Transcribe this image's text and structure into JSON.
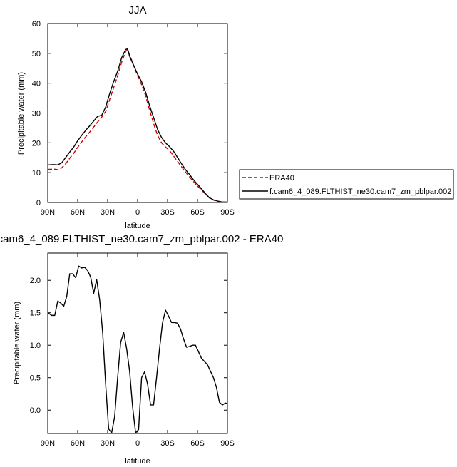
{
  "chart_data": [
    {
      "type": "line",
      "title": "JJA",
      "xlabel": "latitude",
      "ylabel": "Precipitable water (mm)",
      "xlim": [
        90,
        -90
      ],
      "ylim": [
        0,
        60
      ],
      "xticks": [
        90,
        60,
        30,
        0,
        -30,
        -60,
        -90
      ],
      "xticklabels": [
        "90N",
        "60N",
        "30N",
        "0",
        "30S",
        "60S",
        "90S"
      ],
      "yticks": [
        0,
        10,
        20,
        30,
        40,
        50,
        60
      ],
      "yticklabels": [
        "0",
        "10",
        "20",
        "30",
        "40",
        "50",
        "60"
      ],
      "legend_position": "right",
      "series": [
        {
          "name": "ERA40",
          "color": "#cc0000",
          "dash": "dashed",
          "x": [
            90,
            84,
            80,
            76,
            72,
            68,
            64,
            60,
            56,
            52,
            48,
            44,
            40,
            36,
            32,
            28,
            24,
            20,
            16,
            12,
            10,
            8,
            4,
            0,
            -4,
            -8,
            -12,
            -16,
            -20,
            -24,
            -28,
            -32,
            -36,
            -40,
            -44,
            -48,
            -52,
            -56,
            -60,
            -64,
            -68,
            -72,
            -76,
            -80,
            -84,
            -90
          ],
          "y": [
            11.1,
            11.2,
            11.0,
            11.6,
            13.0,
            14.8,
            16.5,
            18.5,
            20.3,
            22.0,
            23.6,
            25.3,
            27.0,
            28.6,
            30.5,
            34.5,
            38.5,
            42.5,
            47.0,
            50.6,
            51.3,
            49.5,
            46.0,
            42.5,
            39.5,
            35.8,
            31.0,
            26.5,
            22.5,
            20.0,
            18.6,
            17.4,
            15.6,
            13.8,
            12.0,
            10.2,
            8.6,
            7.0,
            5.5,
            4.2,
            2.8,
            1.5,
            0.8,
            0.4,
            0.2,
            0.1
          ]
        },
        {
          "name": "f.cam6_4_089.FLTHIST_ne30.cam7_zm_pblpar.002",
          "color": "#000000",
          "dash": "solid",
          "x": [
            90,
            84,
            80,
            76,
            72,
            68,
            64,
            60,
            56,
            52,
            48,
            44,
            40,
            36,
            32,
            28,
            24,
            20,
            16,
            12,
            10,
            8,
            4,
            0,
            -4,
            -8,
            -12,
            -16,
            -20,
            -24,
            -28,
            -32,
            -36,
            -40,
            -44,
            -48,
            -52,
            -56,
            -60,
            -64,
            -68,
            -72,
            -76,
            -80,
            -84,
            -90
          ],
          "y": [
            12.6,
            12.7,
            12.6,
            13.3,
            15.1,
            16.9,
            18.6,
            20.7,
            22.5,
            24.2,
            25.7,
            27.3,
            28.9,
            29.2,
            32.0,
            36.5,
            40.5,
            44.0,
            48.5,
            51.3,
            51.5,
            49.0,
            46.0,
            43.0,
            40.5,
            37.0,
            32.5,
            28.5,
            24.5,
            21.8,
            20.0,
            18.7,
            17.2,
            15.1,
            13.0,
            11.0,
            9.4,
            7.6,
            6.1,
            4.6,
            3.0,
            1.6,
            0.9,
            0.5,
            0.2,
            0.1
          ]
        }
      ]
    },
    {
      "type": "line",
      "title": "cam6_4_089.FLTHIST_ne30.cam7_zm_pblpar.002 - ERA40",
      "xlabel": "latitude",
      "ylabel": "Precipitable water (mm)",
      "xlim": [
        90,
        -90
      ],
      "ylim": [
        -0.36,
        2.42
      ],
      "xticks": [
        90,
        60,
        30,
        0,
        -30,
        -60,
        -90
      ],
      "xticklabels": [
        "90N",
        "60N",
        "30N",
        "0",
        "30S",
        "60S",
        "90S"
      ],
      "yticks": [
        0.0,
        0.5,
        1.0,
        1.5,
        2.0
      ],
      "yticklabels": [
        "0.0",
        "0.5",
        "1.0",
        "1.5",
        "2.0"
      ],
      "series": [
        {
          "color": "#000000",
          "x": [
            90,
            86,
            83,
            80,
            77,
            74,
            71,
            68,
            65,
            62,
            59,
            56,
            53,
            50,
            47,
            44,
            41,
            38,
            35,
            32,
            29,
            26,
            23,
            20,
            17,
            14,
            11,
            8,
            5,
            2,
            -1,
            -4,
            -7,
            -10,
            -13,
            -16,
            -19,
            -22,
            -25,
            -28,
            -31,
            -34,
            -37,
            -40,
            -43,
            -46,
            -49,
            -52,
            -55,
            -58,
            -61,
            -64,
            -67,
            -70,
            -73,
            -76,
            -79,
            -82,
            -85,
            -88,
            -90
          ],
          "y": [
            1.5,
            1.46,
            1.46,
            1.68,
            1.65,
            1.6,
            1.75,
            2.1,
            2.1,
            2.04,
            2.22,
            2.19,
            2.2,
            2.15,
            2.05,
            1.8,
            2.01,
            1.7,
            1.2,
            0.4,
            -0.29,
            -0.35,
            -0.1,
            0.5,
            1.04,
            1.2,
            0.95,
            0.6,
            0.05,
            -0.35,
            -0.3,
            0.5,
            0.59,
            0.4,
            0.08,
            0.08,
            0.5,
            0.95,
            1.35,
            1.54,
            1.45,
            1.35,
            1.35,
            1.34,
            1.25,
            1.1,
            0.97,
            0.98,
            1.0,
            1.0,
            0.9,
            0.8,
            0.75,
            0.7,
            0.6,
            0.5,
            0.35,
            0.12,
            0.08,
            0.11,
            0.1
          ]
        }
      ]
    }
  ]
}
